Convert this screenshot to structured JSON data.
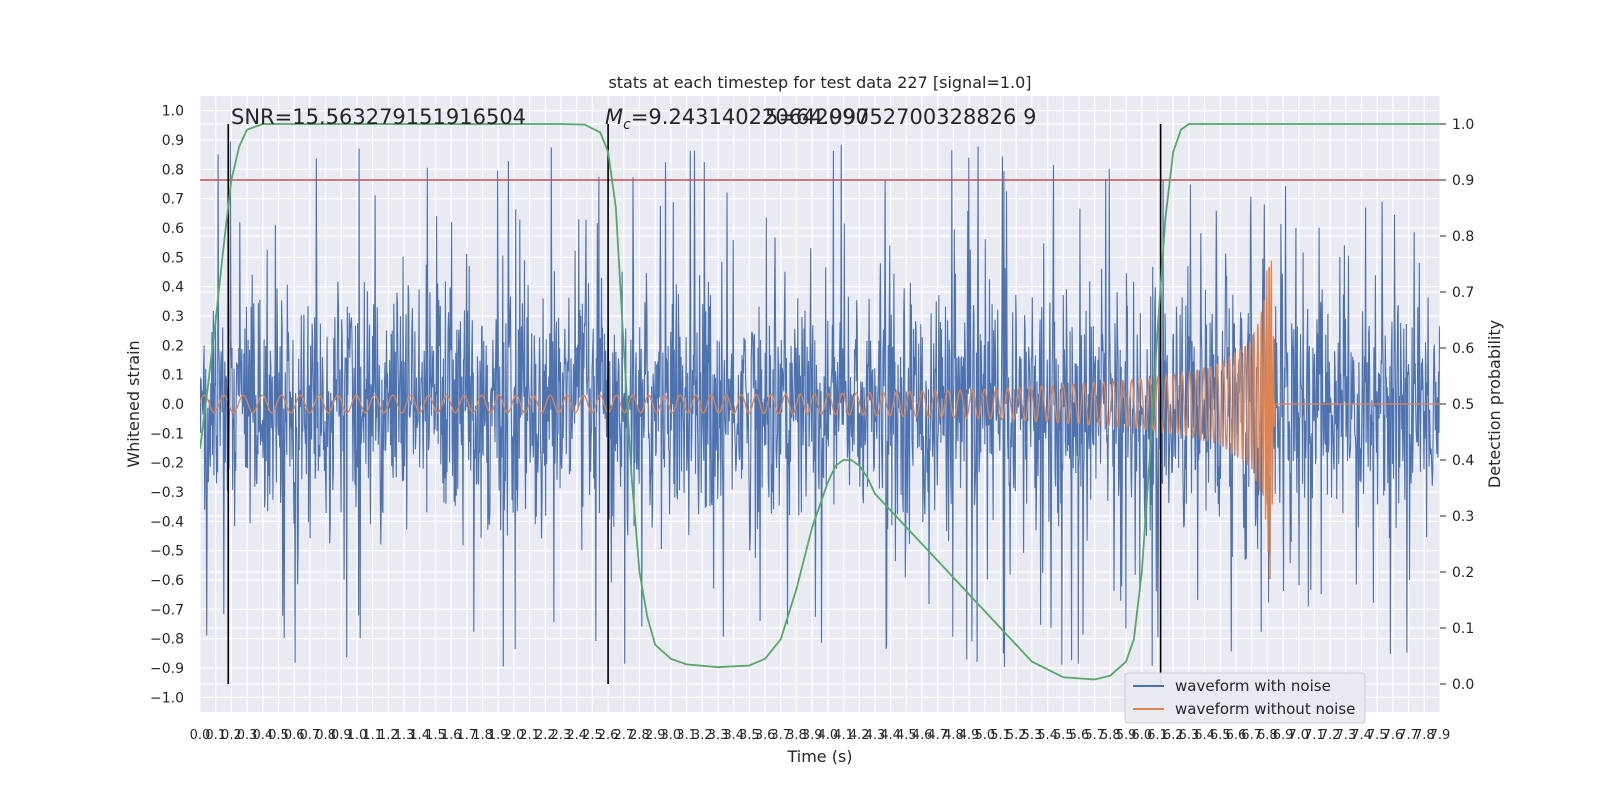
{
  "chart_data": {
    "type": "line",
    "title": "stats at each timestep for test data 227 [signal=1.0]",
    "xlabel": "Time (s)",
    "ylabel_left": "Whitened strain",
    "ylabel_right": "Detection probability",
    "xlim": [
      0.0,
      7.9
    ],
    "ylim_left": [
      -1.05,
      1.05
    ],
    "ylim_right": [
      -0.05,
      1.05
    ],
    "x_ticks": [
      "0.0",
      "0.1",
      "0.2",
      "0.3",
      "0.4",
      "0.5",
      "0.6",
      "0.7",
      "0.8",
      "0.9",
      "1.0",
      "1.1",
      "1.2",
      "1.3",
      "1.4",
      "1.5",
      "1.6",
      "1.7",
      "1.8",
      "1.9",
      "2.0",
      "2.1",
      "2.2",
      "2.3",
      "2.4",
      "2.5",
      "2.6",
      "2.7",
      "2.8",
      "2.9",
      "3.0",
      "3.1",
      "3.2",
      "3.3",
      "3.4",
      "3.5",
      "3.6",
      "3.7",
      "3.8",
      "3.9",
      "4.0",
      "4.1",
      "4.2",
      "4.3",
      "4.4",
      "4.5",
      "4.6",
      "4.7",
      "4.8",
      "4.9",
      "5.0",
      "5.1",
      "5.2",
      "5.3",
      "5.4",
      "5.5",
      "5.6",
      "5.7",
      "5.8",
      "5.9",
      "6.0",
      "6.1",
      "6.2",
      "6.3",
      "6.4",
      "6.5",
      "6.6",
      "6.7",
      "6.8",
      "6.9",
      "7.0",
      "7.1",
      "7.2",
      "7.3",
      "7.4",
      "7.5",
      "7.6",
      "7.7",
      "7.8",
      "7.9"
    ],
    "y_ticks_left": [
      "1.0",
      "0.9",
      "0.8",
      "0.7",
      "0.6",
      "0.5",
      "0.4",
      "0.3",
      "0.2",
      "0.1",
      "0.0",
      "−0.1",
      "−0.2",
      "−0.3",
      "−0.4",
      "−0.5",
      "−0.6",
      "−0.7",
      "−0.8",
      "−0.9",
      "−1.0"
    ],
    "y_ticks_right": [
      "1.0",
      "0.9",
      "0.8",
      "0.7",
      "0.6",
      "0.5",
      "0.4",
      "0.3",
      "0.2",
      "0.1",
      "0.0"
    ],
    "annotations": {
      "snr": "SNR=15.563279151916504",
      "mc_prefix": "M",
      "mc_sub": "c",
      "mc_value": "=9.243140220642090",
      "overlap": "5=64.99752700328826 9"
    },
    "legend": {
      "placement": "lower right",
      "items": [
        {
          "label": "waveform with noise",
          "color": "#4c72b0"
        },
        {
          "label": "waveform without noise",
          "color": "#dd8452"
        }
      ]
    },
    "vertical_lines_x": [
      0.18,
      2.6,
      6.12
    ],
    "threshold_probability": 0.9,
    "series": [
      {
        "name": "waveform with noise",
        "color": "#4c72b0",
        "axis": "left",
        "note_envelope": {
          "typical_abs_amplitude": 0.35,
          "peak_max": 1.0,
          "peak_min": -0.93
        }
      },
      {
        "name": "waveform without noise",
        "color": "#dd8452",
        "axis": "left",
        "envelope": {
          "x": [
            0.0,
            1.0,
            2.0,
            3.0,
            4.0,
            5.0,
            5.5,
            6.0,
            6.3,
            6.5,
            6.7,
            6.78,
            6.82,
            6.85,
            7.9
          ],
          "amp": [
            0.03,
            0.03,
            0.03,
            0.03,
            0.035,
            0.05,
            0.065,
            0.085,
            0.11,
            0.14,
            0.22,
            0.35,
            0.62,
            0.0,
            0.0
          ]
        },
        "merger_x": 6.82
      },
      {
        "name": "detection probability",
        "color": "#55a868",
        "axis": "right",
        "x": [
          0.0,
          0.05,
          0.1,
          0.15,
          0.2,
          0.25,
          0.3,
          0.4,
          0.5,
          0.7,
          1.0,
          1.5,
          2.0,
          2.3,
          2.45,
          2.55,
          2.6,
          2.65,
          2.7,
          2.75,
          2.8,
          2.85,
          2.9,
          3.0,
          3.1,
          3.3,
          3.5,
          3.6,
          3.7,
          3.8,
          3.9,
          4.0,
          4.05,
          4.1,
          4.15,
          4.2,
          4.25,
          4.3,
          4.4,
          4.5,
          4.7,
          4.9,
          5.1,
          5.3,
          5.5,
          5.7,
          5.8,
          5.9,
          5.95,
          6.0,
          6.05,
          6.1,
          6.15,
          6.2,
          6.25,
          6.3,
          6.35,
          6.5,
          7.0,
          7.5,
          7.9
        ],
        "y": [
          0.42,
          0.53,
          0.65,
          0.78,
          0.9,
          0.96,
          0.99,
          1.0,
          1.0,
          1.0,
          1.0,
          1.0,
          1.0,
          1.0,
          0.999,
          0.985,
          0.95,
          0.85,
          0.6,
          0.37,
          0.2,
          0.12,
          0.07,
          0.045,
          0.035,
          0.03,
          0.033,
          0.045,
          0.08,
          0.17,
          0.28,
          0.36,
          0.39,
          0.4,
          0.4,
          0.39,
          0.37,
          0.34,
          0.31,
          0.28,
          0.22,
          0.16,
          0.1,
          0.04,
          0.012,
          0.008,
          0.015,
          0.04,
          0.08,
          0.2,
          0.4,
          0.63,
          0.83,
          0.95,
          0.99,
          1.0,
          1.0,
          1.0,
          1.0,
          1.0,
          1.0
        ]
      }
    ]
  }
}
